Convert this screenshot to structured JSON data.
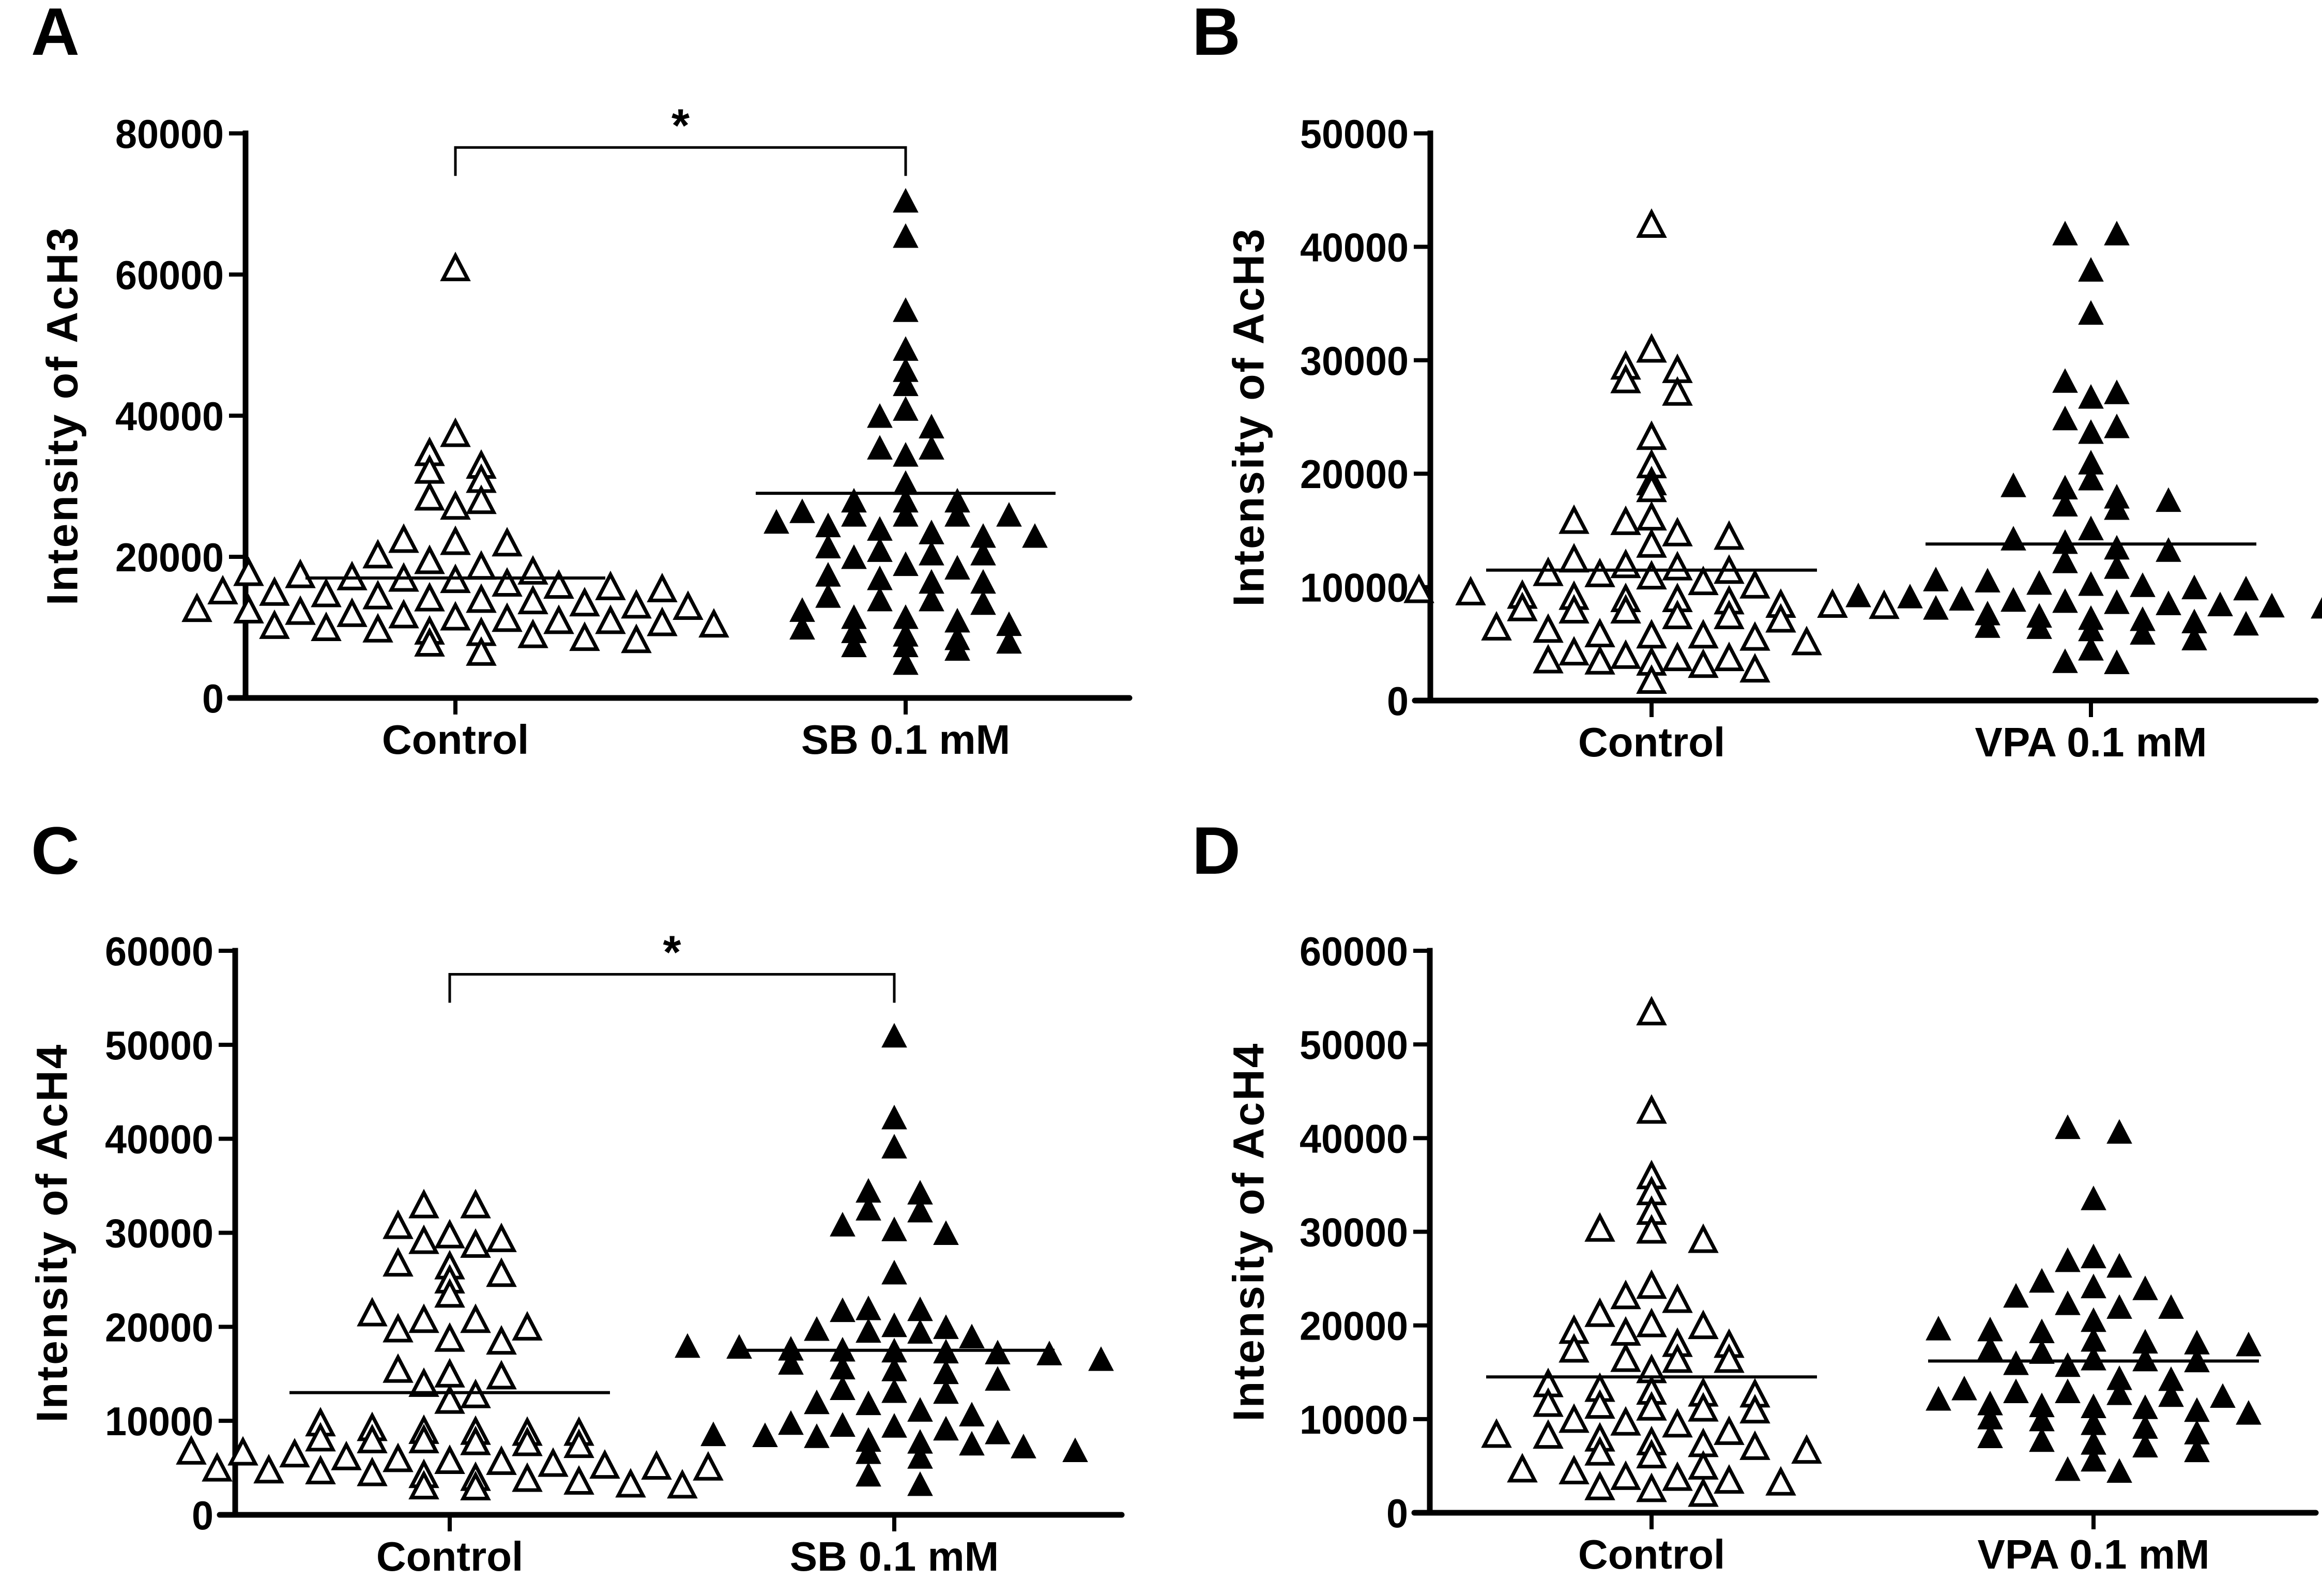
{
  "figure": {
    "marker_color": "#000000",
    "background": "#ffffff"
  },
  "chart_data": [
    {
      "panel": "A",
      "type": "scatter",
      "subtype": "column-scatter (beeswarm) with mean line",
      "title": "",
      "ylabel": "Intensity of AcH3",
      "xlabel": "",
      "categories": [
        "Control",
        "SB 0.1 mM"
      ],
      "ylim": [
        0,
        80000
      ],
      "yticks": [
        0,
        20000,
        40000,
        60000,
        80000
      ],
      "ytick_labels": [
        "0",
        "20000",
        "40000",
        "60000",
        "80000"
      ],
      "grid": false,
      "legend": "none",
      "significance": {
        "from": "Control",
        "to": "SB 0.1 mM",
        "label": "*",
        "y": 78000
      },
      "series": [
        {
          "name": "Control",
          "marker": "open-triangle",
          "mean": 17000,
          "values": [
            61000,
            37500,
            34800,
            33000,
            32300,
            31000,
            28500,
            28000,
            27200,
            22500,
            22200,
            22000,
            20300,
            19500,
            18700,
            18000,
            17800,
            17500,
            17200,
            17000,
            16800,
            16300,
            16000,
            15800,
            15500,
            15200,
            15000,
            14800,
            14500,
            14200,
            14000,
            13800,
            13500,
            13200,
            13000,
            12700,
            12500,
            12300,
            12000,
            11800,
            11500,
            11300,
            11000,
            11000,
            10700,
            10500,
            10300,
            10000,
            9800,
            9500,
            9300,
            9000,
            8600,
            8300,
            7800,
            6500
          ]
        },
        {
          "name": "SB 0.1 mM",
          "marker": "filled-triangle",
          "mean": 29000,
          "values": [
            70500,
            65500,
            55000,
            49500,
            46500,
            44500,
            41000,
            40000,
            38500,
            35500,
            35500,
            34500,
            30500,
            28000,
            28000,
            28000,
            26500,
            26000,
            26000,
            26000,
            26000,
            25000,
            24500,
            24000,
            23500,
            23000,
            23000,
            21500,
            21000,
            20500,
            20500,
            20000,
            19000,
            18500,
            17500,
            17000,
            16500,
            16500,
            14500,
            14000,
            14000,
            13500,
            12500,
            11500,
            11500,
            11000,
            10500,
            10000,
            9500,
            9000,
            8500,
            8000,
            7500,
            7500,
            7000,
            5000
          ]
        }
      ]
    },
    {
      "panel": "B",
      "type": "scatter",
      "subtype": "column-scatter (beeswarm) with mean line",
      "title": "",
      "ylabel": "Intensity of AcH3",
      "xlabel": "",
      "categories": [
        "Control",
        "VPA 0.1 mM"
      ],
      "ylim": [
        0,
        50000
      ],
      "yticks": [
        0,
        10000,
        20000,
        30000,
        40000,
        50000
      ],
      "ytick_labels": [
        "0",
        "10000",
        "20000",
        "30000",
        "40000",
        "50000"
      ],
      "grid": false,
      "legend": "none",
      "significance": null,
      "series": [
        {
          "name": "Control",
          "marker": "open-triangle",
          "mean": 11500,
          "values": [
            42000,
            31000,
            29500,
            29200,
            28300,
            27200,
            23300,
            20800,
            19300,
            18700,
            16200,
            15900,
            15800,
            14800,
            14500,
            13800,
            12500,
            12000,
            11800,
            11500,
            11300,
            11200,
            11000,
            10500,
            10200,
            9800,
            9600,
            9300,
            9200,
            9000,
            9000,
            8800,
            8500,
            8500,
            8400,
            8200,
            8000,
            8000,
            7500,
            7500,
            7200,
            6500,
            6300,
            5900,
            5800,
            5800,
            5600,
            5200,
            4300,
            4000,
            3800,
            3800,
            3600,
            3500,
            3400,
            3200,
            2800,
            1800
          ]
        },
        {
          "name": "VPA 0.1 mM",
          "marker": "filled-triangle",
          "mean": 13800,
          "values": [
            41200,
            41200,
            38000,
            34200,
            28200,
            27200,
            26800,
            24900,
            24200,
            23700,
            21000,
            19600,
            19000,
            18800,
            18000,
            17700,
            17300,
            17000,
            15200,
            14300,
            14000,
            13500,
            13300,
            12300,
            11800,
            10700,
            10600,
            10400,
            10300,
            10200,
            10000,
            9900,
            9300,
            9200,
            9000,
            8900,
            8800,
            8700,
            8600,
            8500,
            8400,
            8300,
            8200,
            7700,
            7500,
            7300,
            7200,
            7000,
            6800,
            6600,
            6500,
            6300,
            6000,
            5500,
            4600,
            3500,
            3400
          ]
        }
      ]
    },
    {
      "panel": "C",
      "type": "scatter",
      "subtype": "column-scatter (beeswarm) with mean line",
      "title": "",
      "ylabel": "Intensity of AcH4",
      "xlabel": "",
      "categories": [
        "Control",
        "SB  0.1 mM"
      ],
      "ylim": [
        0,
        60000
      ],
      "yticks": [
        0,
        10000,
        20000,
        30000,
        40000,
        50000,
        60000
      ],
      "ytick_labels": [
        "0",
        "10000",
        "20000",
        "30000",
        "40000",
        "50000",
        "60000"
      ],
      "grid": false,
      "legend": "none",
      "significance": {
        "from": "Control",
        "to": "SB  0.1 mM",
        "label": "*",
        "y": 57500
      },
      "series": [
        {
          "name": "Control",
          "marker": "open-triangle",
          "mean": 13000,
          "values": [
            33000,
            33000,
            30800,
            29800,
            29400,
            28800,
            29200,
            26800,
            26500,
            25700,
            25000,
            23500,
            21500,
            20800,
            20800,
            20000,
            19800,
            18800,
            18500,
            15500,
            15000,
            14800,
            14000,
            12800,
            12200,
            9800,
            9300,
            9000,
            8900,
            8800,
            8800,
            8200,
            8000,
            8000,
            7800,
            7700,
            7500,
            6800,
            6700,
            6500,
            6200,
            6000,
            5800,
            5700,
            5500,
            5300,
            5200,
            5100,
            5000,
            4800,
            4700,
            4500,
            4300,
            4000,
            3900,
            3600,
            3300,
            3200,
            3100,
            3000
          ]
        },
        {
          "name": "SB  0.1 mM",
          "marker": "filled-triangle",
          "mean": 17500,
          "values": [
            51000,
            42300,
            39200,
            34500,
            34300,
            32600,
            32400,
            30900,
            30400,
            30000,
            25800,
            22000,
            21900,
            21800,
            20200,
            20000,
            19800,
            19600,
            19500,
            19000,
            18000,
            17900,
            17700,
            17600,
            17500,
            17400,
            17300,
            17200,
            16600,
            16200,
            15700,
            15500,
            15200,
            14500,
            13500,
            13200,
            13100,
            12000,
            11900,
            11200,
            10700,
            9800,
            9600,
            9500,
            9200,
            8800,
            8600,
            8500,
            8400,
            8000,
            7800,
            7600,
            7300,
            6900,
            6700,
            6200,
            4300,
            3300
          ]
        }
      ]
    },
    {
      "panel": "D",
      "type": "scatter",
      "subtype": "column-scatter (beeswarm) with mean line",
      "title": "",
      "ylabel": "Intensity of AcH4",
      "xlabel": "",
      "categories": [
        "Control",
        "VPA 0.1 mM"
      ],
      "ylim": [
        0,
        60000
      ],
      "yticks": [
        0,
        10000,
        20000,
        30000,
        40000,
        50000,
        60000
      ],
      "ytick_labels": [
        "0",
        "10000",
        "20000",
        "30000",
        "40000",
        "50000",
        "60000"
      ],
      "grid": false,
      "legend": "none",
      "significance": null,
      "series": [
        {
          "name": "Control",
          "marker": "open-triangle",
          "mean": 14500,
          "values": [
            53500,
            43000,
            36000,
            34300,
            32200,
            30400,
            30200,
            29200,
            24300,
            23200,
            22800,
            21300,
            20200,
            20000,
            19500,
            19300,
            18100,
            18000,
            17500,
            16500,
            16400,
            16400,
            15300,
            13800,
            13300,
            13000,
            12800,
            12700,
            11700,
            11500,
            11300,
            11200,
            11000,
            10000,
            9700,
            9500,
            8700,
            8400,
            8300,
            8000,
            7600,
            7400,
            7100,
            6700,
            6500,
            6200,
            5000,
            4700,
            4500,
            3900,
            3800,
            3500,
            3300,
            2800,
            2600,
            2100
          ]
        },
        {
          "name": "VPA 0.1 mM",
          "marker": "filled-triangle",
          "mean": 16200,
          "values": [
            41200,
            40700,
            33600,
            27400,
            27000,
            26400,
            24800,
            24200,
            24000,
            23200,
            22400,
            22000,
            22000,
            20600,
            19700,
            19600,
            19400,
            18500,
            18300,
            18200,
            18000,
            17600,
            17200,
            16500,
            16400,
            16300,
            16000,
            15800,
            14400,
            14300,
            13300,
            13000,
            13000,
            12800,
            12600,
            12500,
            12200,
            11700,
            11500,
            11400,
            11300,
            11000,
            10700,
            10200,
            10000,
            9600,
            9200,
            8600,
            8200,
            7800,
            7500,
            7200,
            6700,
            5700,
            4700,
            4500
          ]
        }
      ]
    }
  ]
}
